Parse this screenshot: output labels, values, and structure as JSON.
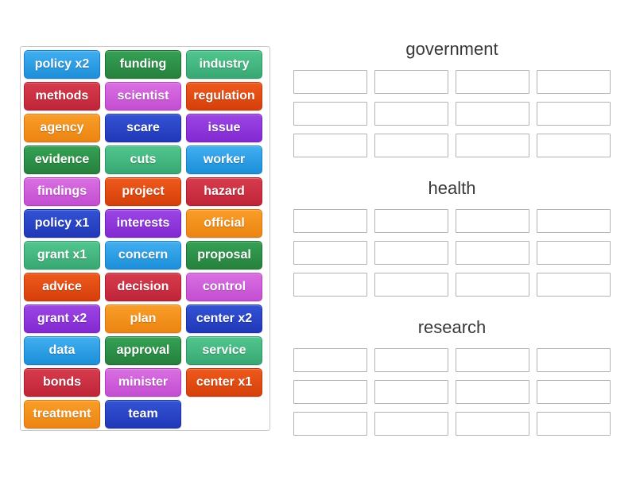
{
  "panel": {
    "tiles": [
      {
        "label": "policy x2",
        "color": "lightblue"
      },
      {
        "label": "funding",
        "color": "darkgreen"
      },
      {
        "label": "industry",
        "color": "seafoam"
      },
      {
        "label": "methods",
        "color": "crimson"
      },
      {
        "label": "scientist",
        "color": "orchid"
      },
      {
        "label": "regulation",
        "color": "orangered"
      },
      {
        "label": "agency",
        "color": "orange"
      },
      {
        "label": "scare",
        "color": "royalblue"
      },
      {
        "label": "issue",
        "color": "violet"
      },
      {
        "label": "evidence",
        "color": "darkgreen"
      },
      {
        "label": "cuts",
        "color": "seafoam"
      },
      {
        "label": "worker",
        "color": "lightblue"
      },
      {
        "label": "findings",
        "color": "orchid"
      },
      {
        "label": "project",
        "color": "orangered"
      },
      {
        "label": "hazard",
        "color": "crimson"
      },
      {
        "label": "policy x1",
        "color": "royalblue"
      },
      {
        "label": "interests",
        "color": "violet"
      },
      {
        "label": "official",
        "color": "orange"
      },
      {
        "label": "grant x1",
        "color": "seafoam"
      },
      {
        "label": "concern",
        "color": "lightblue"
      },
      {
        "label": "proposal",
        "color": "darkgreen"
      },
      {
        "label": "advice",
        "color": "orangered"
      },
      {
        "label": "decision",
        "color": "crimson"
      },
      {
        "label": "control",
        "color": "orchid"
      },
      {
        "label": "grant x2",
        "color": "violet"
      },
      {
        "label": "plan",
        "color": "orange"
      },
      {
        "label": "center x2",
        "color": "royalblue"
      },
      {
        "label": "data",
        "color": "lightblue"
      },
      {
        "label": "approval",
        "color": "darkgreen"
      },
      {
        "label": "service",
        "color": "seafoam"
      },
      {
        "label": "bonds",
        "color": "crimson"
      },
      {
        "label": "minister",
        "color": "orchid"
      },
      {
        "label": "center x1",
        "color": "orangered"
      },
      {
        "label": "treatment",
        "color": "orange"
      },
      {
        "label": "team",
        "color": "royalblue"
      }
    ]
  },
  "groups": [
    {
      "title": "government",
      "rows": 3,
      "cols": 4
    },
    {
      "title": "health",
      "rows": 3,
      "cols": 4
    },
    {
      "title": "research",
      "rows": 3,
      "cols": 4
    }
  ],
  "palette": {
    "lightblue": {
      "top": "#42aef0",
      "bottom": "#1b8fd9",
      "border": "#1681c6"
    },
    "darkgreen": {
      "top": "#35a155",
      "bottom": "#26813d",
      "border": "#1f7034"
    },
    "seafoam": {
      "top": "#52c68f",
      "bottom": "#38a873",
      "border": "#2f9765"
    },
    "crimson": {
      "top": "#d63c4e",
      "bottom": "#c02438",
      "border": "#ad1f31"
    },
    "orchid": {
      "top": "#d96fe2",
      "bottom": "#c44ed1",
      "border": "#b23fbf"
    },
    "orangered": {
      "top": "#ee5a1d",
      "bottom": "#d63f0a",
      "border": "#c23809"
    },
    "orange": {
      "top": "#f99e28",
      "bottom": "#ec8412",
      "border": "#d87710"
    },
    "royalblue": {
      "top": "#3353d4",
      "bottom": "#2038b8",
      "border": "#1c31a6"
    },
    "violet": {
      "top": "#9c46e4",
      "bottom": "#8229d2",
      "border": "#7423be"
    }
  }
}
